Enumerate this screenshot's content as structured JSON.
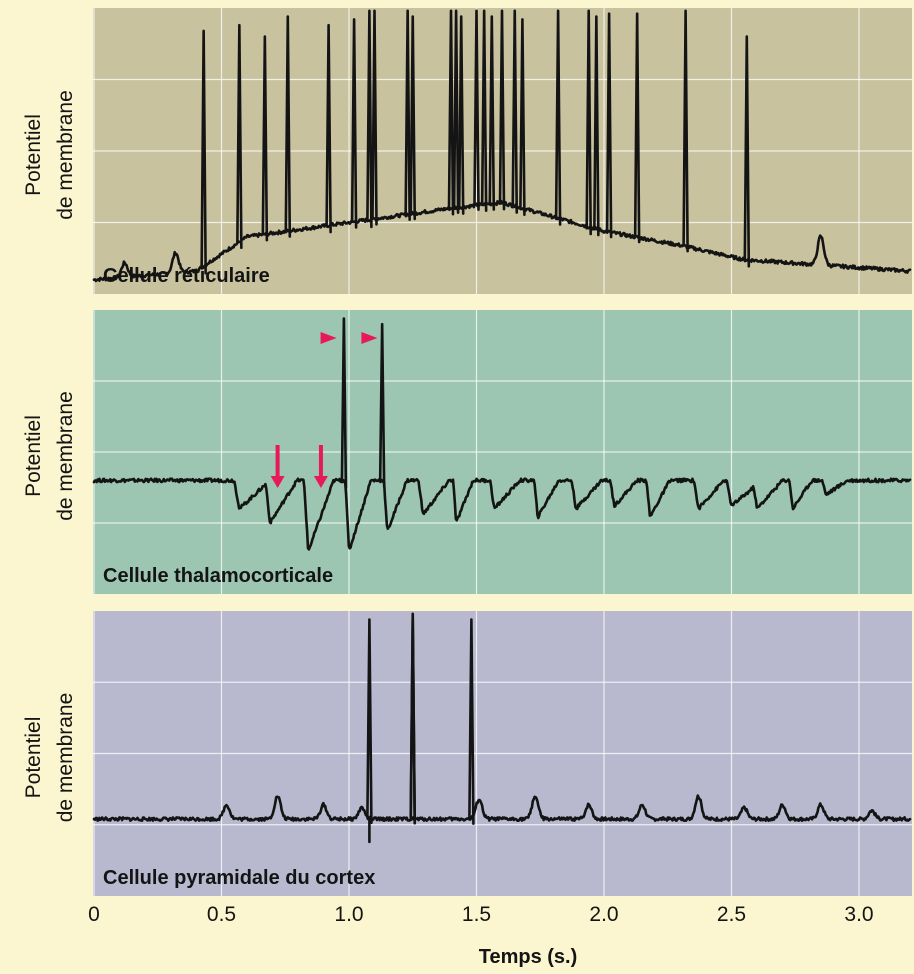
{
  "chart_data": {
    "type": "line",
    "x_ticks": [
      "0",
      "0.5",
      "1.0",
      "1.5",
      "2.0",
      "2.5",
      "3.0"
    ],
    "x_tick_values": [
      0,
      0.5,
      1.0,
      1.5,
      2.0,
      2.5,
      3.0
    ],
    "xlim": [
      0,
      3.2
    ],
    "xlabel": "Temps (s.)",
    "grid": true,
    "colors": {
      "page_background": "#fbf6cf",
      "trace": "#141414",
      "marker": "#e8195a"
    },
    "panels": [
      {
        "label": "Cellule réticulaire",
        "ylabel_line1": "Potentiel",
        "ylabel_line2": "de membrane",
        "background": "#c8c29f",
        "baseline": 0.05,
        "slow_wave": [
          [
            0,
            0.05
          ],
          [
            0.4,
            0.08
          ],
          [
            0.6,
            0.2
          ],
          [
            1.0,
            0.25
          ],
          [
            1.4,
            0.3
          ],
          [
            1.6,
            0.32
          ],
          [
            2.0,
            0.22
          ],
          [
            2.3,
            0.17
          ],
          [
            2.55,
            0.12
          ],
          [
            3.2,
            0.08
          ]
        ],
        "spikes": [
          {
            "t": 0.43,
            "h": 0.92
          },
          {
            "t": 0.57,
            "h": 0.94
          },
          {
            "t": 0.67,
            "h": 0.9
          },
          {
            "t": 0.76,
            "h": 0.97
          },
          {
            "t": 0.92,
            "h": 0.94
          },
          {
            "t": 1.02,
            "h": 0.96
          },
          {
            "t": 1.08,
            "h": 0.99
          },
          {
            "t": 1.1,
            "h": 0.99
          },
          {
            "t": 1.23,
            "h": 0.99
          },
          {
            "t": 1.25,
            "h": 0.97
          },
          {
            "t": 1.4,
            "h": 0.99
          },
          {
            "t": 1.42,
            "h": 0.99
          },
          {
            "t": 1.44,
            "h": 0.97
          },
          {
            "t": 1.5,
            "h": 0.99
          },
          {
            "t": 1.53,
            "h": 0.99
          },
          {
            "t": 1.56,
            "h": 0.97
          },
          {
            "t": 1.6,
            "h": 0.99
          },
          {
            "t": 1.65,
            "h": 0.99
          },
          {
            "t": 1.68,
            "h": 0.96
          },
          {
            "t": 1.82,
            "h": 0.99
          },
          {
            "t": 1.94,
            "h": 0.99
          },
          {
            "t": 1.97,
            "h": 0.97
          },
          {
            "t": 2.02,
            "h": 0.98
          },
          {
            "t": 2.13,
            "h": 0.98
          },
          {
            "t": 2.32,
            "h": 0.99
          },
          {
            "t": 2.56,
            "h": 0.9
          }
        ],
        "bumps": [
          {
            "t": 0.12,
            "h": 0.05
          },
          {
            "t": 0.32,
            "h": 0.07
          },
          {
            "t": 2.85,
            "h": 0.1
          }
        ]
      },
      {
        "label": "Cellule thalamocorticale",
        "ylabel_line1": "Potentiel",
        "ylabel_line2": "de membrane",
        "background": "#9cc5b2",
        "baseline": 0.4,
        "spikes": [
          {
            "t": 0.98,
            "h": 0.97
          },
          {
            "t": 1.13,
            "h": 0.95
          }
        ],
        "sawtooth": [
          {
            "t": 0.55,
            "h": 0.4,
            "min": 0.3
          },
          {
            "t": 0.67,
            "h": 0.42,
            "min": 0.25
          },
          {
            "t": 0.82,
            "h": 0.45,
            "min": 0.15
          },
          {
            "t": 0.98,
            "h": 0.5,
            "min": 0.15
          },
          {
            "t": 1.13,
            "h": 0.5,
            "min": 0.22
          },
          {
            "t": 1.27,
            "h": 0.42,
            "min": 0.28
          },
          {
            "t": 1.4,
            "h": 0.52,
            "min": 0.25
          },
          {
            "t": 1.55,
            "h": 0.42,
            "min": 0.3
          },
          {
            "t": 1.72,
            "h": 0.46,
            "min": 0.27
          },
          {
            "t": 1.87,
            "h": 0.42,
            "min": 0.3
          },
          {
            "t": 2.02,
            "h": 0.43,
            "min": 0.31
          },
          {
            "t": 2.16,
            "h": 0.47,
            "min": 0.27
          },
          {
            "t": 2.35,
            "h": 0.42,
            "min": 0.3
          },
          {
            "t": 2.48,
            "h": 0.4,
            "min": 0.31
          },
          {
            "t": 2.58,
            "h": 0.42,
            "min": 0.3
          },
          {
            "t": 2.72,
            "h": 0.46,
            "min": 0.3
          },
          {
            "t": 2.85,
            "h": 0.42,
            "min": 0.35
          }
        ],
        "arrows_down": [
          0.72,
          0.89
        ],
        "arrowheads_right": [
          0.92,
          1.08
        ]
      },
      {
        "label": "Cellule pyramidale du cortex",
        "ylabel_line1": "Potentiel",
        "ylabel_line2": "de membrane",
        "background": "#b8b9cf",
        "baseline": 0.27,
        "spikes": [
          {
            "t": 1.08,
            "h": 0.97
          },
          {
            "t": 1.25,
            "h": 0.99
          },
          {
            "t": 1.25,
            "h": 0.97
          },
          {
            "t": 1.48,
            "h": 0.97
          }
        ],
        "bumps": [
          {
            "t": 0.52,
            "h": 0.05
          },
          {
            "t": 0.72,
            "h": 0.08
          },
          {
            "t": 0.9,
            "h": 0.05
          },
          {
            "t": 1.05,
            "h": 0.04
          },
          {
            "t": 1.51,
            "h": 0.07
          },
          {
            "t": 1.73,
            "h": 0.08
          },
          {
            "t": 1.94,
            "h": 0.05
          },
          {
            "t": 2.15,
            "h": 0.05
          },
          {
            "t": 2.37,
            "h": 0.08
          },
          {
            "t": 2.55,
            "h": 0.04
          },
          {
            "t": 2.7,
            "h": 0.05
          },
          {
            "t": 2.85,
            "h": 0.05
          },
          {
            "t": 3.05,
            "h": 0.03
          }
        ],
        "negative_spikes": [
          1.08
        ]
      }
    ]
  }
}
